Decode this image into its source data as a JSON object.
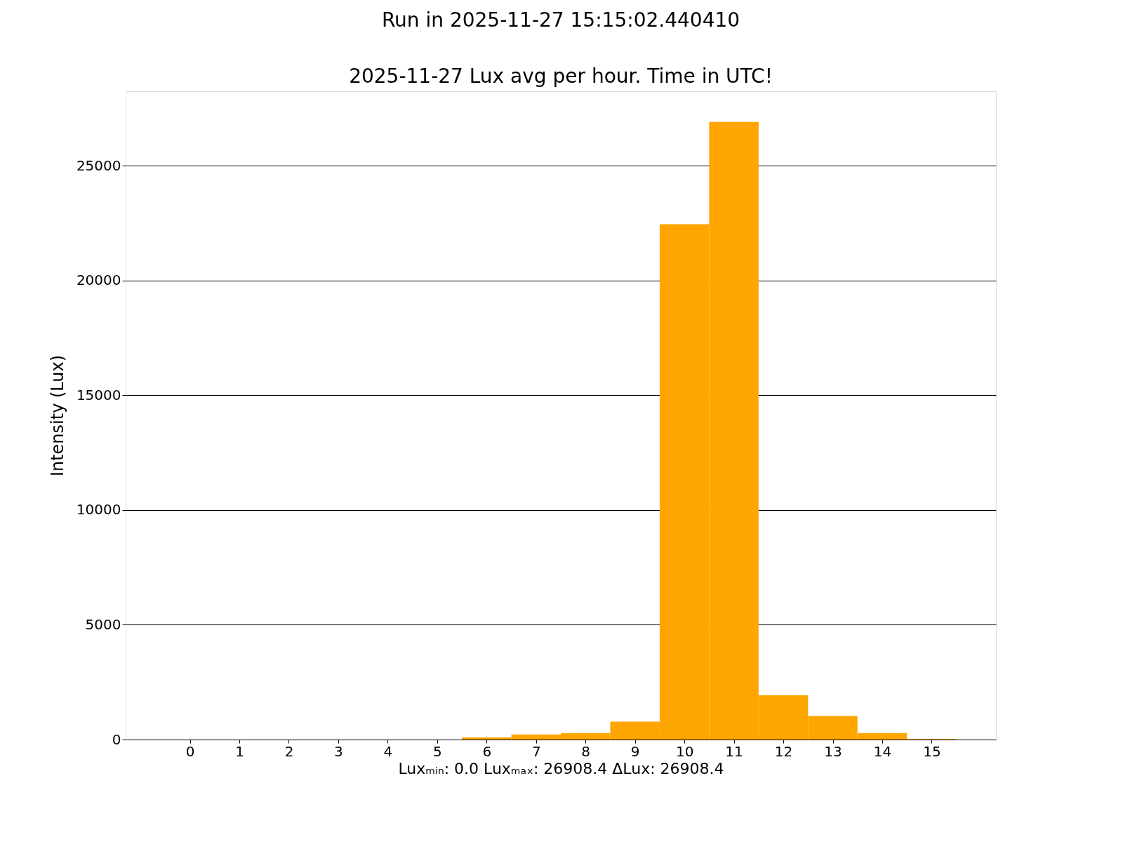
{
  "chart_data": {
    "type": "bar",
    "title": "Run in 2025-11-27 15:15:02.440410",
    "subtitle": "2025-11-27 Lux avg per hour. Time in UTC!",
    "xlabel": "Luxₘᵢₙ: 0.0   Luxₘₐₓ: 26908.4   ΔLux: 26908.4",
    "ylabel": "Intensity (Lux)",
    "x": [
      0,
      1,
      2,
      3,
      4,
      5,
      6,
      7,
      8,
      9,
      10,
      11,
      12,
      13,
      14,
      15
    ],
    "values": [
      0,
      0,
      0,
      0,
      0,
      0,
      90,
      220,
      280,
      780,
      22450,
      26900,
      1930,
      1030,
      280,
      30
    ],
    "color": "#ffa500",
    "xlim": [
      -1.3,
      16.3
    ],
    "xticks": [
      0,
      1,
      2,
      3,
      4,
      5,
      6,
      7,
      8,
      9,
      10,
      11,
      12,
      13,
      14,
      15
    ],
    "ylim": [
      0,
      28240
    ],
    "yticks": [
      0,
      5000,
      10000,
      15000,
      20000,
      25000
    ],
    "grid": "y"
  }
}
